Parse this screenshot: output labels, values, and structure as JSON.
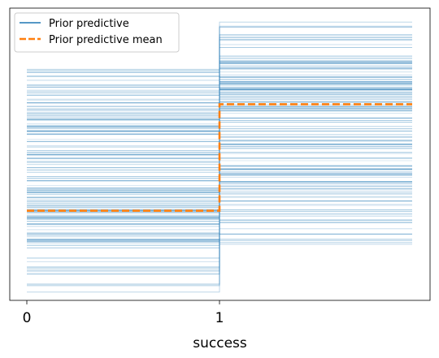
{
  "chart_data": {
    "type": "line",
    "title": "",
    "xlabel": "success",
    "ylabel": "",
    "x_ticks": [
      {
        "value": 0,
        "label": "0"
      },
      {
        "value": 1,
        "label": "1"
      }
    ],
    "xlim": [
      -0.09,
      2.09
    ],
    "ylim": [
      0,
      1
    ],
    "grid": false,
    "y_ticks_shown": false,
    "legend": {
      "placement": "top-left",
      "entries": [
        {
          "label": "Prior predictive",
          "style": "solid",
          "color": "#1f77b4"
        },
        {
          "label": "Prior predictive mean",
          "style": "dashed",
          "color": "#ff7f0e"
        }
      ]
    },
    "series": [
      {
        "name": "Prior predictive",
        "kind": "ensemble-step",
        "color": "#1f77b4",
        "count": 150,
        "step_at_x": 1,
        "segment_0_to_1_y_range": [
          0.0,
          0.83
        ],
        "segment_1_to_2_y_range": [
          0.17,
          1.0
        ]
      },
      {
        "name": "Prior predictive mean",
        "kind": "step",
        "color": "#ff7f0e",
        "points": [
          {
            "x": 0,
            "y": 0.305
          },
          {
            "x": 1,
            "y": 0.305
          },
          {
            "x": 1,
            "y": 0.695
          },
          {
            "x": 2,
            "y": 0.695
          }
        ]
      }
    ]
  }
}
